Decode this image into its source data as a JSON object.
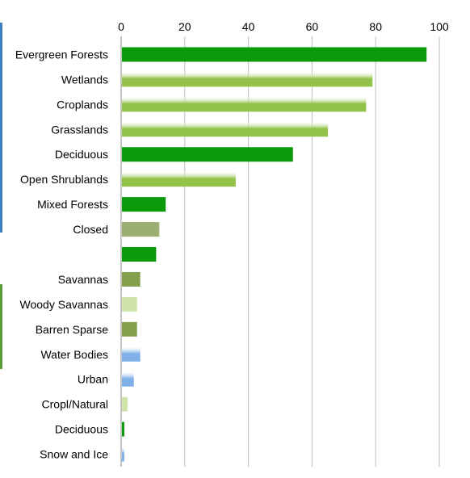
{
  "chart_data": {
    "type": "bar",
    "orientation": "horizontal",
    "title": "",
    "xlabel": "",
    "ylabel": "",
    "xlim": [
      0,
      100
    ],
    "x_ticks": [
      0,
      20,
      40,
      60,
      80,
      100
    ],
    "x_axis_position": "top",
    "grid": true,
    "legend": "none",
    "categories": [
      "Evergreen Forests",
      "Wetlands",
      "Croplands",
      "Grasslands",
      "Deciduous",
      "Open Shrublands",
      "Mixed Forests",
      "Closed",
      "",
      "Savannas",
      "Woody Savannas",
      "Barren Sparse",
      "Water Bodies",
      "Urban",
      "Cropl/Natural",
      "Deciduous",
      "Snow and Ice"
    ],
    "values": [
      96,
      79,
      77,
      65,
      54,
      36,
      14,
      12,
      11,
      6,
      5,
      5,
      6,
      4,
      2,
      1,
      1
    ],
    "colors": [
      "#0a9a0a",
      "#92c24a",
      "#92c24a",
      "#92c24a",
      "#0a9a0a",
      "#92c24a",
      "#0a9a0a",
      "#9cae72",
      "#0a9a0a",
      "#85a04c",
      "#cfe3a8",
      "#85a04c",
      "#7fb1e8",
      "#7fb1e8",
      "#cfe3a8",
      "#0a9a0a",
      "#7fb1e8"
    ],
    "gradient": [
      false,
      true,
      true,
      true,
      false,
      true,
      false,
      false,
      false,
      false,
      false,
      false,
      true,
      true,
      false,
      false,
      true
    ]
  }
}
